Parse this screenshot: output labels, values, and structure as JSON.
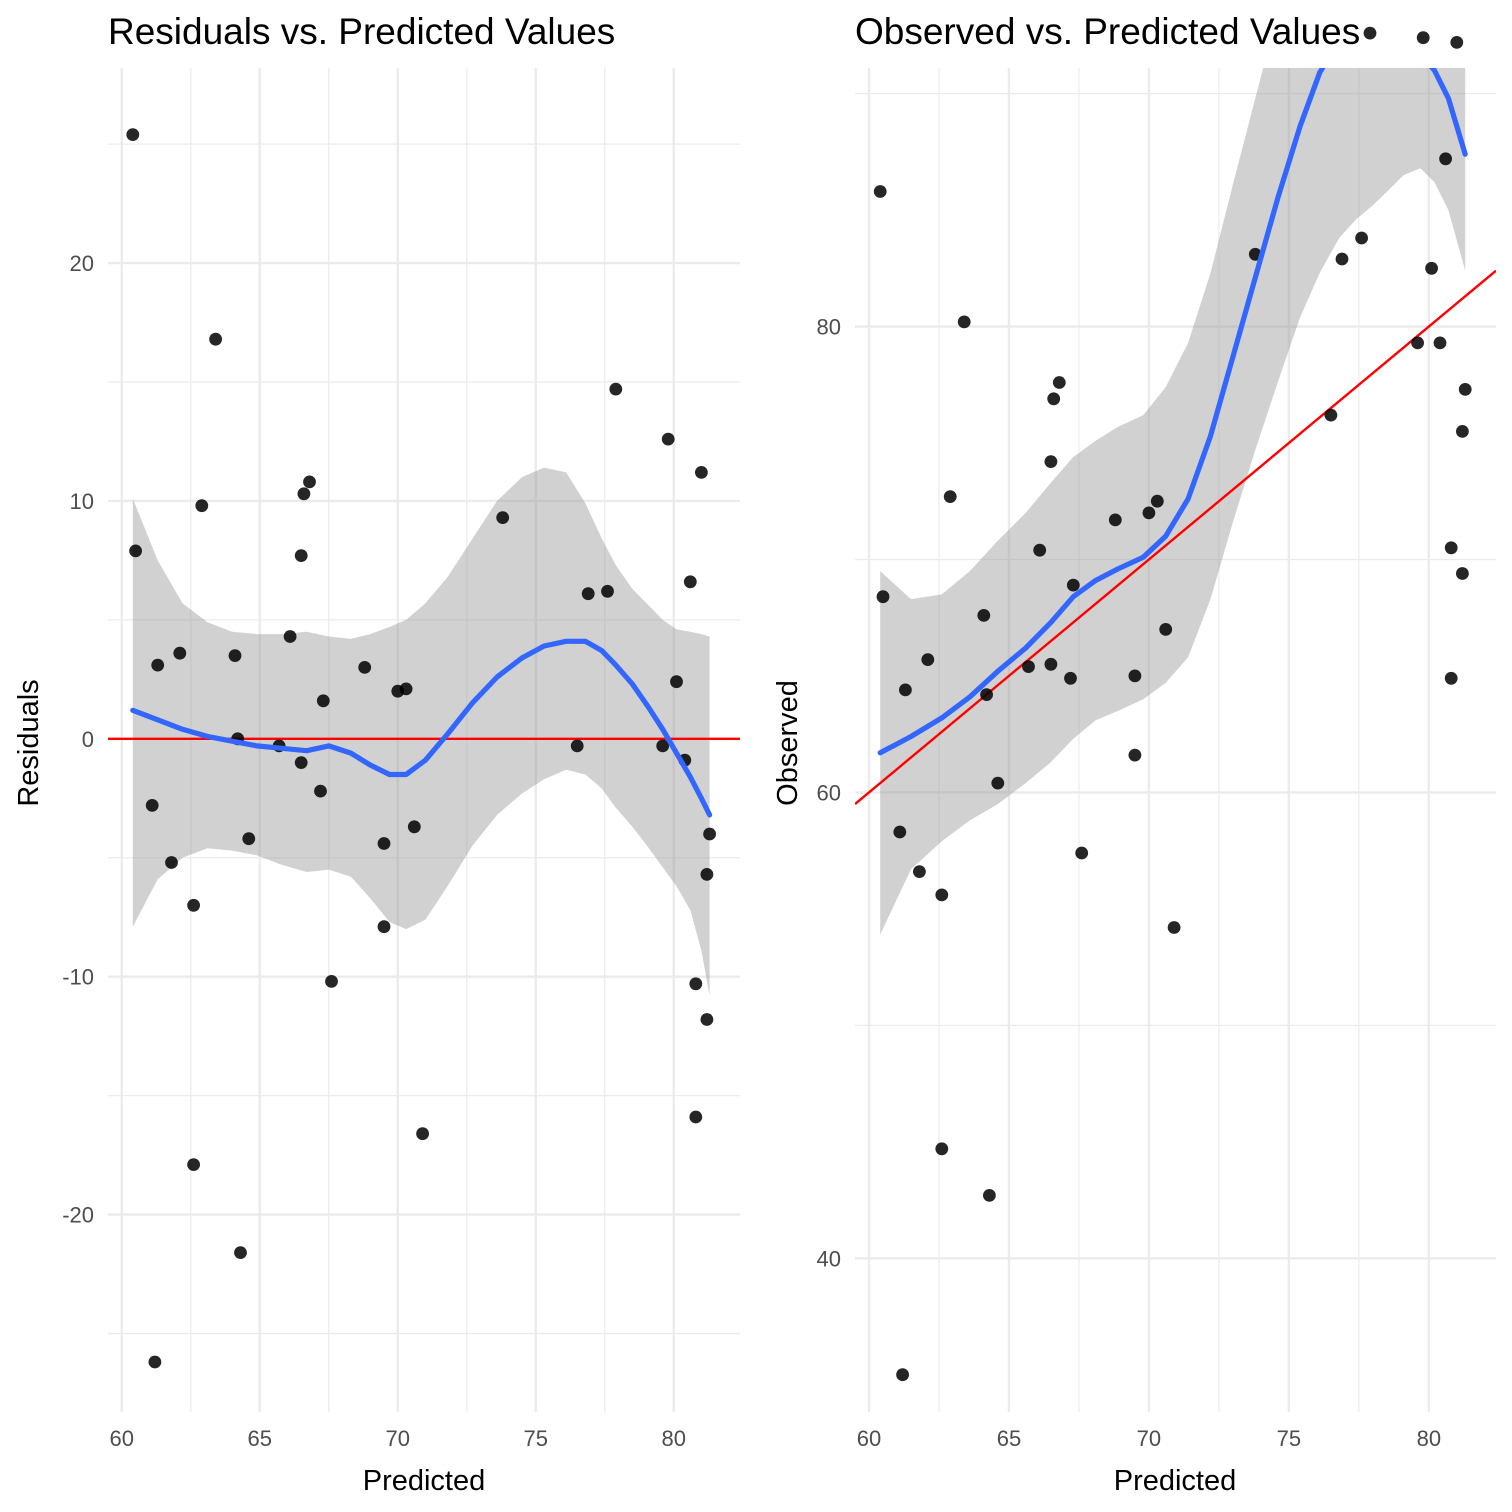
{
  "chart_data": [
    {
      "type": "scatter",
      "title": "Residuals vs. Predicted Values",
      "xlabel": "Predicted",
      "ylabel": "Residuals",
      "xlim": [
        59.5,
        82.4
      ],
      "ylim": [
        -28.3,
        28.2
      ],
      "x_ticks": [
        60,
        65,
        70,
        75,
        80
      ],
      "x_tick_labels": [
        "60",
        "65",
        "70",
        "75",
        "80"
      ],
      "y_ticks": [
        -20,
        -10,
        0,
        10,
        20
      ],
      "y_tick_labels": [
        "-20",
        "-10",
        "0",
        "10",
        "20"
      ],
      "grid": true,
      "points": [
        [
          60.4,
          25.4
        ],
        [
          60.5,
          7.9
        ],
        [
          61.1,
          -2.8
        ],
        [
          61.2,
          -26.2
        ],
        [
          61.3,
          3.1
        ],
        [
          61.8,
          -5.2
        ],
        [
          62.1,
          3.6
        ],
        [
          62.6,
          -7.0
        ],
        [
          62.6,
          -17.9
        ],
        [
          62.9,
          9.8
        ],
        [
          63.4,
          16.8
        ],
        [
          64.1,
          3.5
        ],
        [
          64.2,
          0.0
        ],
        [
          64.3,
          -21.6
        ],
        [
          64.6,
          -4.2
        ],
        [
          65.7,
          -0.3
        ],
        [
          66.1,
          4.3
        ],
        [
          66.5,
          7.7
        ],
        [
          66.5,
          -1.0
        ],
        [
          66.6,
          10.3
        ],
        [
          66.8,
          10.8
        ],
        [
          67.2,
          -2.2
        ],
        [
          67.3,
          1.6
        ],
        [
          67.6,
          -10.2
        ],
        [
          68.8,
          3.0
        ],
        [
          69.5,
          -4.4
        ],
        [
          69.5,
          -7.9
        ],
        [
          70.0,
          2.0
        ],
        [
          70.3,
          2.1
        ],
        [
          70.6,
          -3.7
        ],
        [
          70.9,
          -16.6
        ],
        [
          73.8,
          9.3
        ],
        [
          76.5,
          -0.3
        ],
        [
          76.9,
          6.1
        ],
        [
          77.6,
          6.2
        ],
        [
          77.9,
          14.7
        ],
        [
          79.6,
          -0.3
        ],
        [
          79.8,
          12.6
        ],
        [
          80.1,
          2.4
        ],
        [
          80.4,
          -0.9
        ],
        [
          80.6,
          6.6
        ],
        [
          80.8,
          -10.3
        ],
        [
          80.8,
          -15.9
        ],
        [
          81.0,
          11.2
        ],
        [
          81.2,
          -11.8
        ],
        [
          81.2,
          -5.7
        ],
        [
          81.3,
          -4.0
        ]
      ],
      "smooth": {
        "color": "#3366FF",
        "x": [
          60.4,
          61.3,
          62.2,
          63.1,
          64.0,
          64.9,
          65.8,
          66.7,
          67.5,
          68.3,
          69.0,
          69.7,
          70.3,
          71.0,
          71.8,
          72.7,
          73.6,
          74.5,
          75.3,
          76.1,
          76.8,
          77.4,
          77.9,
          78.5,
          79.1,
          79.6,
          80.1,
          80.6,
          81.0,
          81.3
        ],
        "y": [
          1.2,
          0.8,
          0.4,
          0.1,
          -0.1,
          -0.3,
          -0.4,
          -0.5,
          -0.3,
          -0.6,
          -1.1,
          -1.5,
          -1.5,
          -0.9,
          0.2,
          1.5,
          2.6,
          3.4,
          3.9,
          4.1,
          4.1,
          3.7,
          3.1,
          2.3,
          1.3,
          0.4,
          -0.6,
          -1.6,
          -2.5,
          -3.2
        ],
        "lower": [
          -7.9,
          -5.9,
          -5.0,
          -4.6,
          -4.7,
          -4.9,
          -5.3,
          -5.6,
          -5.5,
          -5.8,
          -6.7,
          -7.7,
          -8.0,
          -7.6,
          -6.2,
          -4.5,
          -3.2,
          -2.3,
          -1.7,
          -1.3,
          -1.5,
          -2.1,
          -2.9,
          -3.7,
          -4.6,
          -5.4,
          -6.2,
          -7.2,
          -8.9,
          -10.8
        ],
        "upper": [
          10.1,
          7.5,
          5.7,
          4.9,
          4.5,
          4.4,
          4.4,
          4.5,
          4.3,
          4.2,
          4.4,
          4.7,
          5.0,
          5.7,
          6.8,
          8.4,
          10.0,
          11.0,
          11.4,
          11.2,
          9.9,
          8.4,
          7.3,
          6.3,
          5.6,
          5.0,
          4.6,
          4.5,
          4.4,
          4.3
        ]
      },
      "reference_line": {
        "color": "#FF0000",
        "type": "horizontal",
        "y": 0
      }
    },
    {
      "type": "scatter",
      "title": "Observed vs. Predicted Values",
      "xlabel": "Predicted",
      "ylabel": "Observed",
      "xlim": [
        59.5,
        82.4
      ],
      "ylim": [
        33.4,
        91.1
      ],
      "x_ticks": [
        60,
        65,
        70,
        75,
        80
      ],
      "x_tick_labels": [
        "60",
        "65",
        "70",
        "75",
        "80"
      ],
      "y_ticks": [
        40,
        60,
        80
      ],
      "y_tick_labels": [
        "40",
        "60",
        "80"
      ],
      "grid": true,
      "points": [
        [
          60.4,
          85.8
        ],
        [
          60.5,
          68.4
        ],
        [
          61.1,
          58.3
        ],
        [
          61.2,
          35.0
        ],
        [
          61.3,
          64.4
        ],
        [
          61.8,
          56.6
        ],
        [
          62.1,
          65.7
        ],
        [
          62.6,
          55.6
        ],
        [
          62.6,
          44.7
        ],
        [
          62.9,
          72.7
        ],
        [
          63.4,
          80.2
        ],
        [
          64.1,
          67.6
        ],
        [
          64.2,
          64.2
        ],
        [
          64.3,
          42.7
        ],
        [
          64.6,
          60.4
        ],
        [
          65.7,
          65.4
        ],
        [
          66.1,
          70.4
        ],
        [
          66.5,
          74.2
        ],
        [
          66.5,
          65.5
        ],
        [
          66.6,
          76.9
        ],
        [
          66.8,
          77.6
        ],
        [
          67.2,
          64.9
        ],
        [
          67.3,
          68.9
        ],
        [
          67.6,
          57.4
        ],
        [
          68.8,
          71.7
        ],
        [
          69.5,
          65.0
        ],
        [
          69.5,
          61.6
        ],
        [
          70.0,
          72.0
        ],
        [
          70.3,
          72.5
        ],
        [
          70.6,
          67.0
        ],
        [
          70.9,
          54.2
        ],
        [
          73.8,
          83.1
        ],
        [
          76.5,
          76.2
        ],
        [
          76.9,
          82.9
        ],
        [
          77.6,
          83.8
        ],
        [
          77.9,
          92.6
        ],
        [
          79.6,
          79.3
        ],
        [
          79.8,
          92.4
        ],
        [
          80.1,
          82.5
        ],
        [
          80.4,
          79.3
        ],
        [
          80.6,
          87.2
        ],
        [
          80.8,
          70.5
        ],
        [
          80.8,
          64.9
        ],
        [
          81.0,
          92.2
        ],
        [
          81.2,
          69.4
        ],
        [
          81.2,
          75.5
        ],
        [
          81.3,
          77.3
        ]
      ],
      "smooth": {
        "color": "#3366FF",
        "x": [
          60.4,
          61.5,
          62.6,
          63.6,
          64.6,
          65.6,
          66.5,
          67.3,
          68.1,
          68.9,
          69.8,
          70.6,
          71.4,
          72.2,
          73.0,
          73.8,
          74.6,
          75.4,
          76.1,
          76.8,
          77.4,
          78.0,
          78.6,
          79.1,
          79.7,
          80.2,
          80.7,
          81.3
        ],
        "y": [
          61.7,
          62.4,
          63.2,
          64.1,
          65.2,
          66.2,
          67.3,
          68.4,
          69.1,
          69.6,
          70.1,
          71.0,
          72.6,
          75.3,
          78.7,
          82.1,
          85.5,
          88.6,
          90.9,
          92.3,
          92.8,
          92.8,
          92.5,
          92.1,
          91.7,
          91.0,
          89.8,
          87.4
        ],
        "lower": [
          53.9,
          56.7,
          57.9,
          58.8,
          59.5,
          60.4,
          61.3,
          62.3,
          63.1,
          63.5,
          64.0,
          64.7,
          65.8,
          68.3,
          71.6,
          74.7,
          77.6,
          80.4,
          82.3,
          83.8,
          84.6,
          85.2,
          85.9,
          86.5,
          86.8,
          86.2,
          85.0,
          82.4
        ],
        "upper": [
          69.5,
          68.3,
          68.5,
          69.5,
          70.8,
          72.0,
          73.3,
          74.4,
          75.1,
          75.7,
          76.2,
          77.4,
          79.3,
          82.3,
          86.1,
          89.8,
          93.5,
          96.7,
          99.2,
          100.7,
          100.9,
          100.2,
          99.4,
          98.3,
          97.6,
          96.6,
          96.0,
          96.0
        ]
      },
      "reference_line": {
        "color": "#FF0000",
        "type": "identity",
        "slope": 1,
        "intercept": 0
      }
    }
  ]
}
